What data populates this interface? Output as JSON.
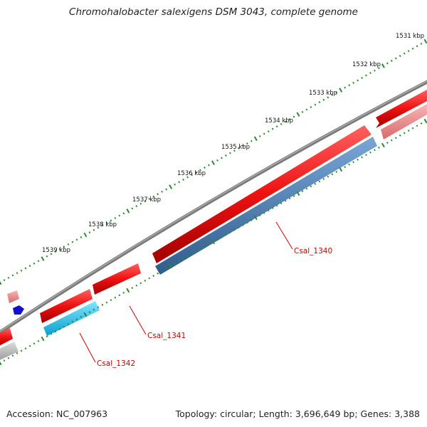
{
  "title": "Chromohalobacter salexigens DSM 3043, complete genome",
  "footer": {
    "accession": "Accession: NC_007963",
    "summary": "Topology: circular; Length: 3,696,649 bp; Genes: 3,388"
  },
  "ticks": [
    "1531 kbp",
    "1532 kbp",
    "1533 kbp",
    "1534 kbp",
    "1535 kbp",
    "1536 kbp",
    "1537 kbp",
    "1538 kbp",
    "1539 kbp"
  ],
  "genes": [
    "Csal_1340",
    "Csal_1341",
    "Csal_1342"
  ],
  "colors": {
    "forward_gene": "#ee1111",
    "reverse_gene_1340": "#4a7aaa",
    "reverse_gene_1342": "#22c4ee",
    "backbone": "#777777",
    "tick": "#2a8a2a",
    "label": "#cc0000"
  }
}
